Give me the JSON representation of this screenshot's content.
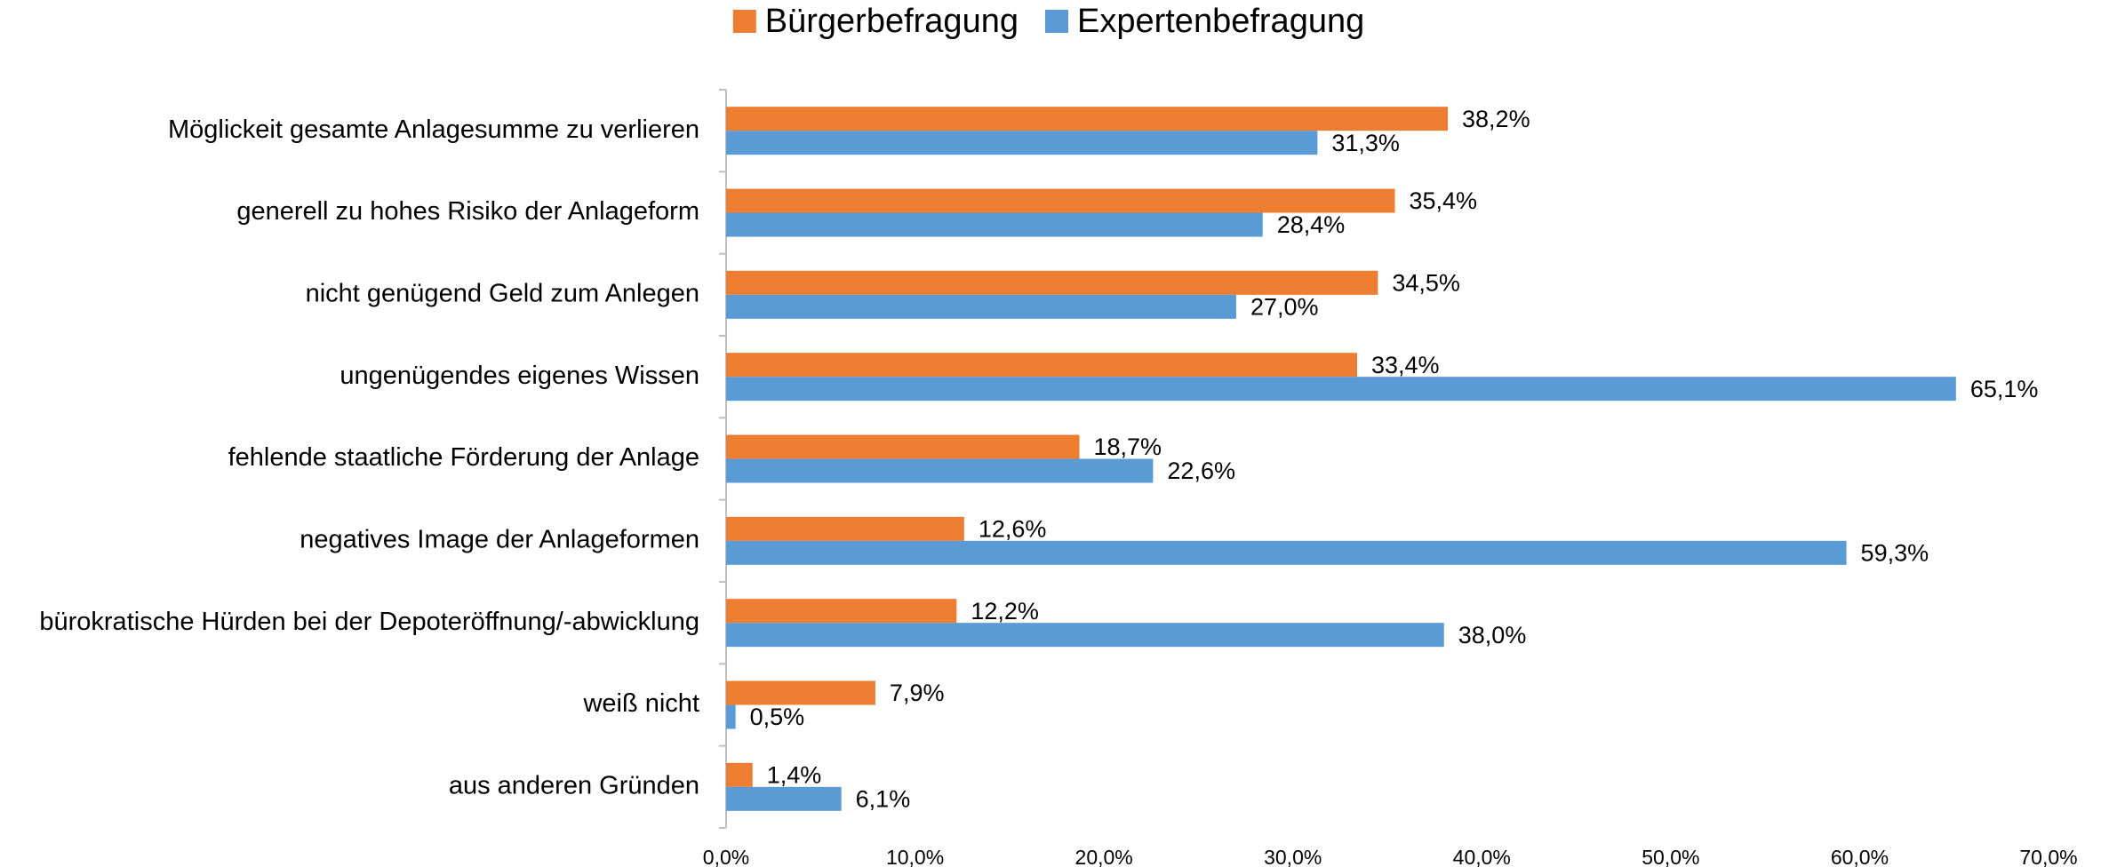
{
  "chart_data": {
    "type": "hbar",
    "categories": [
      "Möglickeit gesamte Anlagesumme zu verlieren",
      "generell zu hohes Risiko der Anlageform",
      "nicht genügend Geld zum Anlegen",
      "ungenügendes eigenes Wissen",
      "fehlende staatliche Förderung der Anlage",
      "negatives Image der Anlageformen",
      "bürokratische Hürden bei der Depoteröffnung/-abwicklung",
      "weiß nicht",
      "aus anderen Gründen"
    ],
    "series": [
      {
        "name": "Bürgerbefragung",
        "color": "#ED7D31",
        "values": [
          38.2,
          35.4,
          34.5,
          33.4,
          18.7,
          12.6,
          12.2,
          7.9,
          1.4
        ],
        "value_labels": [
          "38,2%",
          "35,4%",
          "34,5%",
          "33,4%",
          "18,7%",
          "12,6%",
          "12,2%",
          "7,9%",
          "1,4%"
        ]
      },
      {
        "name": "Expertenbefragung",
        "color": "#5B9BD5",
        "values": [
          31.3,
          28.4,
          27.0,
          65.1,
          22.6,
          59.3,
          38.0,
          0.5,
          6.1
        ],
        "value_labels": [
          "31,3%",
          "28,4%",
          "27,0%",
          "65,1%",
          "22,6%",
          "59,3%",
          "38,0%",
          "0,5%",
          "6,1%"
        ]
      }
    ],
    "xlim": [
      0,
      70
    ],
    "xticks": [
      {
        "value": 0,
        "label": "0,0%"
      },
      {
        "value": 10,
        "label": "10,0%"
      },
      {
        "value": 20,
        "label": "20,0%"
      },
      {
        "value": 30,
        "label": "30,0%"
      },
      {
        "value": 40,
        "label": "40,0%"
      },
      {
        "value": 50,
        "label": "50,0%"
      },
      {
        "value": 60,
        "label": "60,0%"
      },
      {
        "value": 70,
        "label": "70,0%"
      }
    ],
    "grid": false,
    "legend": "top"
  }
}
